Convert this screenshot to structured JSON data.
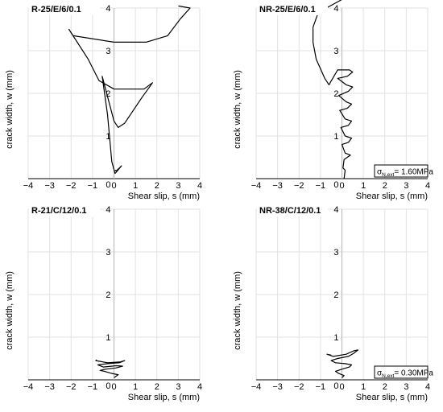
{
  "chart_data": [
    {
      "type": "line",
      "title": "R-25/E/6/0.1",
      "xlabel": "Shear slip, s (mm)",
      "ylabel": "crack width, w (mm)",
      "xlim": [
        -4,
        4
      ],
      "ylim": [
        0,
        4
      ],
      "x_ticks": [
        "−4",
        "−3",
        "−2",
        "−1",
        "0",
        "1",
        "2",
        "3",
        "4"
      ],
      "y_ticks": [
        "1",
        "2",
        "3",
        "4"
      ],
      "y_zero_label": "0",
      "annotation": null,
      "series": [
        {
          "points": [
            [
              0.05,
              0.2
            ],
            [
              0.1,
              0.18
            ],
            [
              0.25,
              0.25
            ],
            [
              0.35,
              0.3
            ],
            [
              0.1,
              0.15
            ],
            [
              0.05,
              0.12
            ],
            [
              -0.1,
              0.4
            ],
            [
              -0.3,
              1.5
            ],
            [
              -0.55,
              2.4
            ],
            [
              0.0,
              1.35
            ],
            [
              0.2,
              1.2
            ],
            [
              0.5,
              1.3
            ],
            [
              1.3,
              1.9
            ],
            [
              1.8,
              2.25
            ],
            [
              1.4,
              2.1
            ],
            [
              0.0,
              2.1
            ],
            [
              -0.7,
              2.3
            ],
            [
              -1.2,
              2.8
            ],
            [
              -2.1,
              3.5
            ],
            [
              -1.9,
              3.35
            ],
            [
              0.0,
              3.2
            ],
            [
              1.5,
              3.2
            ],
            [
              2.5,
              3.35
            ],
            [
              3.1,
              3.75
            ],
            [
              3.55,
              4.0
            ],
            [
              3.0,
              4.05
            ]
          ]
        }
      ]
    },
    {
      "type": "line",
      "title": "NR-25/E/6/0.1",
      "xlabel": "Shear slip, s (mm)",
      "ylabel": "crack width, w (mm)",
      "xlim": [
        -4,
        4
      ],
      "ylim": [
        0,
        4
      ],
      "x_ticks": [
        "−4",
        "−3",
        "−2",
        "−1",
        "0",
        "1",
        "2",
        "3",
        "4"
      ],
      "y_ticks": [
        "1",
        "2",
        "3",
        "4"
      ],
      "y_zero_label": "0",
      "annotation": {
        "main": "σ",
        "sub": "N,ext",
        "value": "= 1.60MPa"
      },
      "series": [
        {
          "points": [
            [
              0.1,
              0.0
            ],
            [
              0.15,
              0.2
            ],
            [
              0.05,
              0.25
            ],
            [
              0.1,
              0.45
            ],
            [
              0.25,
              0.5
            ],
            [
              0.4,
              0.55
            ],
            [
              0.15,
              0.6
            ],
            [
              0.0,
              0.8
            ],
            [
              0.3,
              0.85
            ],
            [
              0.45,
              0.95
            ],
            [
              0.15,
              1.0
            ],
            [
              -0.05,
              1.2
            ],
            [
              0.3,
              1.25
            ],
            [
              0.45,
              1.35
            ],
            [
              0.15,
              1.4
            ],
            [
              -0.1,
              1.6
            ],
            [
              0.25,
              1.65
            ],
            [
              0.45,
              1.75
            ],
            [
              0.2,
              1.8
            ],
            [
              -0.15,
              1.95
            ],
            [
              0.3,
              2.05
            ],
            [
              0.5,
              2.15
            ],
            [
              0.2,
              2.2
            ],
            [
              -0.2,
              2.35
            ],
            [
              0.25,
              2.4
            ],
            [
              0.5,
              2.5
            ],
            [
              0.35,
              2.55
            ],
            [
              -0.2,
              2.55
            ],
            [
              -0.55,
              2.25
            ],
            [
              -0.6,
              2.2
            ],
            [
              -0.8,
              2.35
            ],
            [
              -1.2,
              2.8
            ],
            [
              -1.35,
              3.2
            ],
            [
              -1.35,
              3.55
            ],
            [
              -1.1,
              3.9
            ],
            [
              -0.55,
              4.05
            ],
            [
              0.0,
              4.2
            ]
          ]
        }
      ]
    },
    {
      "type": "line",
      "title": "R-21/C/12/0.1",
      "xlabel": "Shear slip, s (mm)",
      "ylabel": "crack width, w (mm)",
      "xlim": [
        -4,
        4
      ],
      "ylim": [
        0,
        4
      ],
      "x_ticks": [
        "−4",
        "−3",
        "−2",
        "−1",
        "0",
        "1",
        "2",
        "3",
        "4"
      ],
      "y_ticks": [
        "1",
        "2",
        "3",
        "4"
      ],
      "y_zero_label": "0",
      "annotation": null,
      "series": [
        {
          "points": [
            [
              0.0,
              0.05
            ],
            [
              0.2,
              0.12
            ],
            [
              -0.1,
              0.15
            ],
            [
              -0.45,
              0.2
            ],
            [
              -0.65,
              0.22
            ],
            [
              -0.4,
              0.25
            ],
            [
              0.1,
              0.28
            ],
            [
              0.4,
              0.32
            ],
            [
              0.1,
              0.33
            ],
            [
              -0.5,
              0.3
            ],
            [
              -0.75,
              0.35
            ],
            [
              -0.3,
              0.38
            ],
            [
              0.25,
              0.4
            ],
            [
              0.5,
              0.45
            ],
            [
              0.3,
              0.42
            ],
            [
              -0.3,
              0.4
            ],
            [
              -0.85,
              0.45
            ],
            [
              -0.8,
              0.47
            ]
          ]
        }
      ]
    },
    {
      "type": "line",
      "title": "NR-38/C/12/0.1",
      "xlabel": "Shear slip, s (mm)",
      "ylabel": "crack width, w (mm)",
      "xlim": [
        -4,
        4
      ],
      "ylim": [
        0,
        4
      ],
      "x_ticks": [
        "−4",
        "−3",
        "−2",
        "−1",
        "0",
        "1",
        "2",
        "3",
        "4"
      ],
      "y_ticks": [
        "1",
        "2",
        "3",
        "4"
      ],
      "y_zero_label": "0",
      "annotation": {
        "main": "σ",
        "sub": "N,ext",
        "value": "= 0.30MPa"
      },
      "series": [
        {
          "points": [
            [
              0.0,
              0.05
            ],
            [
              0.1,
              0.1
            ],
            [
              -0.15,
              0.15
            ],
            [
              -0.3,
              0.2
            ],
            [
              0.0,
              0.25
            ],
            [
              0.35,
              0.3
            ],
            [
              0.45,
              0.35
            ],
            [
              0.15,
              0.38
            ],
            [
              -0.3,
              0.4
            ],
            [
              -0.5,
              0.45
            ],
            [
              -0.2,
              0.5
            ],
            [
              0.3,
              0.55
            ],
            [
              0.55,
              0.62
            ],
            [
              0.75,
              0.7
            ],
            [
              0.55,
              0.68
            ],
            [
              0.2,
              0.6
            ],
            [
              -0.4,
              0.55
            ],
            [
              -0.7,
              0.6
            ],
            [
              -0.5,
              0.58
            ]
          ]
        }
      ]
    }
  ]
}
